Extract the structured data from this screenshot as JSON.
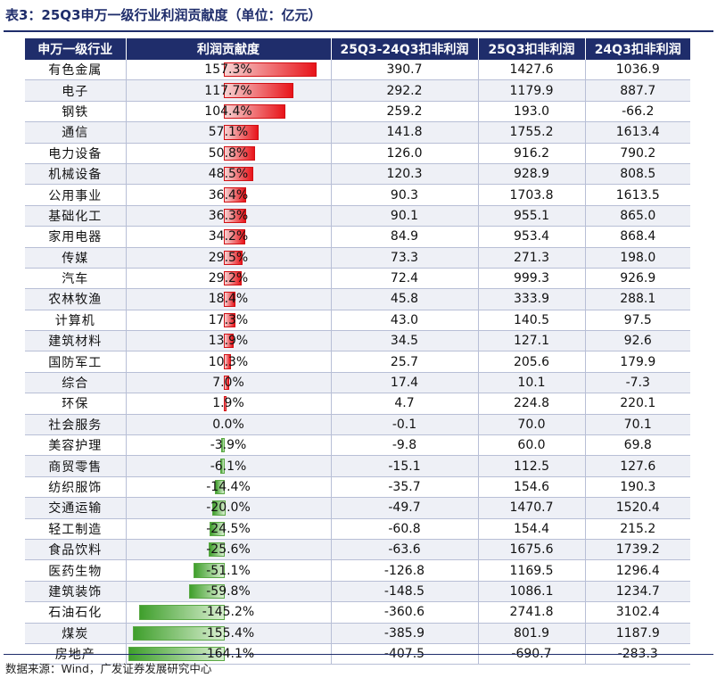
{
  "title": "表3：25Q3申万一级行业利润贡献度（单位：亿元）",
  "headers": [
    "申万一级行业",
    "利润贡献度",
    "25Q3-24Q3扣非利润",
    "25Q3扣非利润",
    "24Q3扣非利润"
  ],
  "rows": [
    {
      "industry": "有色金属",
      "pct": "157.3%",
      "share": 157.3,
      "diff": "390.7",
      "q25": "1427.6",
      "q24": "1036.9"
    },
    {
      "industry": "电子",
      "pct": "117.7%",
      "share": 117.7,
      "diff": "292.2",
      "q25": "1179.9",
      "q24": "887.7"
    },
    {
      "industry": "钢铁",
      "pct": "104.4%",
      "share": 104.4,
      "diff": "259.2",
      "q25": "193.0",
      "q24": "-66.2"
    },
    {
      "industry": "通信",
      "pct": "57.1%",
      "share": 57.1,
      "diff": "141.8",
      "q25": "1755.2",
      "q24": "1613.4"
    },
    {
      "industry": "电力设备",
      "pct": "50.8%",
      "share": 50.8,
      "diff": "126.0",
      "q25": "916.2",
      "q24": "790.2"
    },
    {
      "industry": "机械设备",
      "pct": "48.5%",
      "share": 48.5,
      "diff": "120.3",
      "q25": "928.9",
      "q24": "808.5"
    },
    {
      "industry": "公用事业",
      "pct": "36.4%",
      "share": 36.4,
      "diff": "90.3",
      "q25": "1703.8",
      "q24": "1613.5"
    },
    {
      "industry": "基础化工",
      "pct": "36.3%",
      "share": 36.3,
      "diff": "90.1",
      "q25": "955.1",
      "q24": "865.0"
    },
    {
      "industry": "家用电器",
      "pct": "34.2%",
      "share": 34.2,
      "diff": "84.9",
      "q25": "953.4",
      "q24": "868.4"
    },
    {
      "industry": "传媒",
      "pct": "29.5%",
      "share": 29.5,
      "diff": "73.3",
      "q25": "271.3",
      "q24": "198.0"
    },
    {
      "industry": "汽车",
      "pct": "29.2%",
      "share": 29.2,
      "diff": "72.4",
      "q25": "999.3",
      "q24": "926.9"
    },
    {
      "industry": "农林牧渔",
      "pct": "18.4%",
      "share": 18.4,
      "diff": "45.8",
      "q25": "333.9",
      "q24": "288.1"
    },
    {
      "industry": "计算机",
      "pct": "17.3%",
      "share": 17.3,
      "diff": "43.0",
      "q25": "140.5",
      "q24": "97.5"
    },
    {
      "industry": "建筑材料",
      "pct": "13.9%",
      "share": 13.9,
      "diff": "34.5",
      "q25": "127.1",
      "q24": "92.6"
    },
    {
      "industry": "国防军工",
      "pct": "10.3%",
      "share": 10.3,
      "diff": "25.7",
      "q25": "205.6",
      "q24": "179.9"
    },
    {
      "industry": "综合",
      "pct": "7.0%",
      "share": 7.0,
      "diff": "17.4",
      "q25": "10.1",
      "q24": "-7.3"
    },
    {
      "industry": "环保",
      "pct": "1.9%",
      "share": 1.9,
      "diff": "4.7",
      "q25": "224.8",
      "q24": "220.1"
    },
    {
      "industry": "社会服务",
      "pct": "0.0%",
      "share": 0.0,
      "diff": "-0.1",
      "q25": "70.0",
      "q24": "70.1"
    },
    {
      "industry": "美容护理",
      "pct": "-3.9%",
      "share": -3.9,
      "diff": "-9.8",
      "q25": "60.0",
      "q24": "69.8"
    },
    {
      "industry": "商贸零售",
      "pct": "-6.1%",
      "share": -6.1,
      "diff": "-15.1",
      "q25": "112.5",
      "q24": "127.6"
    },
    {
      "industry": "纺织服饰",
      "pct": "-14.4%",
      "share": -14.4,
      "diff": "-35.7",
      "q25": "154.6",
      "q24": "190.3"
    },
    {
      "industry": "交通运输",
      "pct": "-20.0%",
      "share": -20.0,
      "diff": "-49.7",
      "q25": "1470.7",
      "q24": "1520.4"
    },
    {
      "industry": "轻工制造",
      "pct": "-24.5%",
      "share": -24.5,
      "diff": "-60.8",
      "q25": "154.4",
      "q24": "215.2"
    },
    {
      "industry": "食品饮料",
      "pct": "-25.6%",
      "share": -25.6,
      "diff": "-63.6",
      "q25": "1675.6",
      "q24": "1739.2"
    },
    {
      "industry": "医药生物",
      "pct": "-51.1%",
      "share": -51.1,
      "diff": "-126.8",
      "q25": "1169.5",
      "q24": "1296.4"
    },
    {
      "industry": "建筑装饰",
      "pct": "-59.8%",
      "share": -59.8,
      "diff": "-148.5",
      "q25": "1086.1",
      "q24": "1234.7"
    },
    {
      "industry": "石油石化",
      "pct": "-145.2%",
      "share": -145.2,
      "diff": "-360.6",
      "q25": "2741.8",
      "q24": "3102.4"
    },
    {
      "industry": "煤炭",
      "pct": "-155.4%",
      "share": -155.4,
      "diff": "-385.9",
      "q25": "801.9",
      "q24": "1187.9"
    },
    {
      "industry": "房地产",
      "pct": "-164.1%",
      "share": -164.1,
      "diff": "-407.5",
      "q25": "-690.7",
      "q24": "-283.3"
    }
  ],
  "source": "数据来源：Wind，广发证券发展研究中心",
  "colors": {
    "header": "#1f2d6b",
    "positive": "#e8141a",
    "negative": "#3f9f2c"
  }
}
